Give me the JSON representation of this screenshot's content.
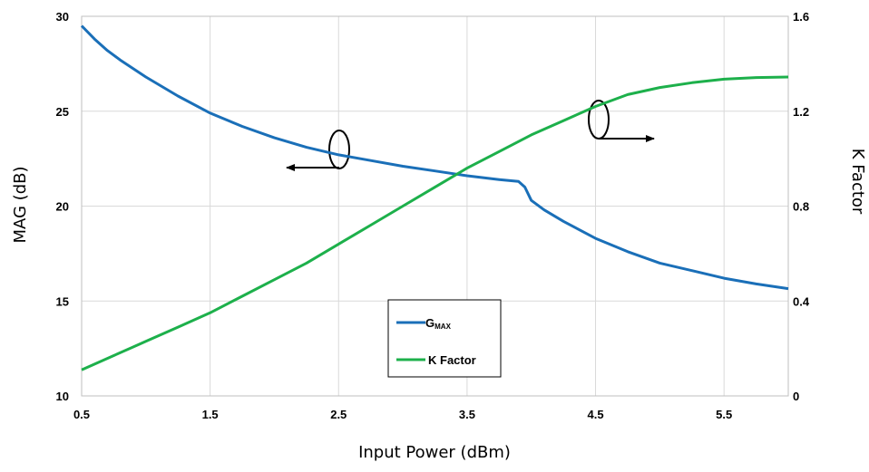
{
  "chart_data": {
    "type": "line",
    "title": "",
    "xlabel": "Input Power (dBm)",
    "ylabel_left": "MAG (dB)",
    "ylabel_right": "K Factor",
    "xlim": [
      0.5,
      6.0
    ],
    "ylim_left": [
      10,
      30
    ],
    "ylim_right": [
      0,
      1.6
    ],
    "x_ticks": [
      "0.5",
      "1.5",
      "2.5",
      "3.5",
      "4.5",
      "5.5"
    ],
    "y_left_ticks": [
      "10",
      "15",
      "20",
      "25",
      "30"
    ],
    "y_right_ticks": [
      "0",
      "0.4",
      "0.8",
      "1.2",
      "1.6"
    ],
    "grid": true,
    "legend_position": "bottom-center",
    "colors": {
      "gmax": "#1a6fb8",
      "kfactor": "#1db04b",
      "grid": "#d9d9d9"
    },
    "series": [
      {
        "key": "gmax",
        "name": "G",
        "name_sub": "MAX",
        "axis": "left",
        "x": [
          0.5,
          0.6,
          0.7,
          0.8,
          1.0,
          1.25,
          1.5,
          1.75,
          2.0,
          2.25,
          2.5,
          2.75,
          3.0,
          3.25,
          3.5,
          3.75,
          3.9,
          3.95,
          4.0,
          4.1,
          4.25,
          4.5,
          4.75,
          5.0,
          5.25,
          5.5,
          5.75,
          6.0
        ],
        "y": [
          29.5,
          28.8,
          28.2,
          27.7,
          26.8,
          25.8,
          24.9,
          24.2,
          23.6,
          23.1,
          22.7,
          22.4,
          22.1,
          21.85,
          21.6,
          21.4,
          21.3,
          21.0,
          20.3,
          19.8,
          19.2,
          18.3,
          17.6,
          17.0,
          16.6,
          16.2,
          15.9,
          15.65
        ]
      },
      {
        "key": "kfactor",
        "name": "K Factor",
        "axis": "right",
        "x": [
          0.5,
          0.75,
          1.0,
          1.25,
          1.5,
          1.75,
          2.0,
          2.25,
          2.5,
          2.75,
          3.0,
          3.25,
          3.5,
          3.75,
          4.0,
          4.25,
          4.5,
          4.75,
          5.0,
          5.25,
          5.5,
          5.75,
          6.0
        ],
        "y": [
          0.11,
          0.17,
          0.23,
          0.29,
          0.35,
          0.42,
          0.49,
          0.56,
          0.64,
          0.72,
          0.8,
          0.88,
          0.96,
          1.03,
          1.1,
          1.16,
          1.22,
          1.27,
          1.3,
          1.32,
          1.335,
          1.342,
          1.344
        ]
      }
    ]
  }
}
